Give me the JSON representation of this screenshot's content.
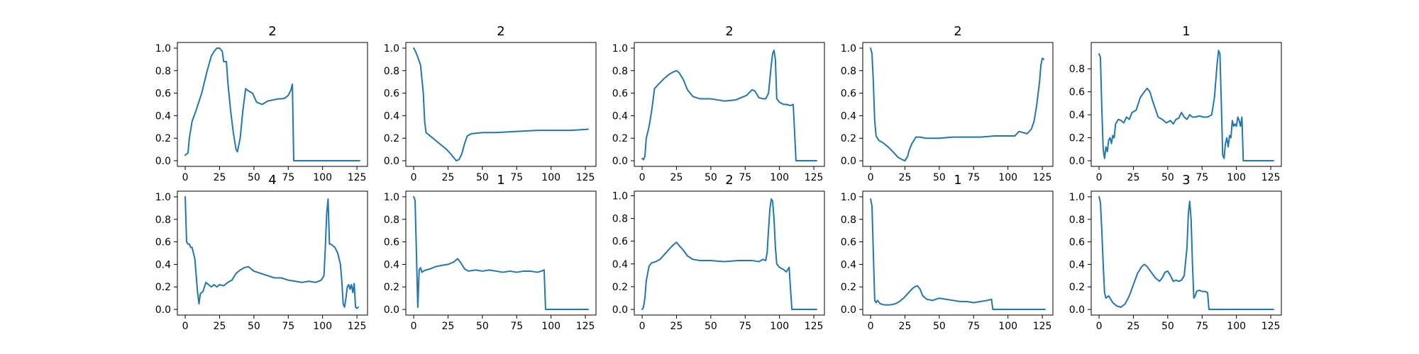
{
  "figure": {
    "background": "#ffffff",
    "line_color": "#1f77b4"
  },
  "chart_data": [
    {
      "type": "line",
      "title": "2",
      "xlim": [
        0,
        127
      ],
      "ylim": [
        0,
        1.0
      ],
      "xticks": [
        "0",
        "25",
        "50",
        "75",
        "100",
        "125"
      ],
      "yticks": [
        "0.0",
        "0.2",
        "0.4",
        "0.6",
        "0.8",
        "1.0"
      ],
      "x": [
        0,
        2,
        3,
        5,
        8,
        12,
        16,
        19,
        21,
        23,
        25,
        27,
        28,
        30,
        31,
        33,
        35,
        37,
        38,
        40,
        42,
        44,
        46,
        49,
        52,
        56,
        60,
        64,
        68,
        71,
        73,
        75,
        77,
        78,
        79,
        127
      ],
      "values": [
        0.05,
        0.07,
        0.2,
        0.35,
        0.45,
        0.6,
        0.8,
        0.93,
        0.97,
        1.0,
        1.0,
        0.97,
        0.88,
        0.88,
        0.7,
        0.45,
        0.25,
        0.1,
        0.08,
        0.2,
        0.45,
        0.64,
        0.62,
        0.6,
        0.52,
        0.5,
        0.53,
        0.54,
        0.55,
        0.55,
        0.56,
        0.58,
        0.63,
        0.68,
        0.0,
        0.0
      ]
    },
    {
      "type": "line",
      "title": "2",
      "xlim": [
        0,
        127
      ],
      "ylim": [
        0,
        1.0
      ],
      "xticks": [
        "0",
        "25",
        "50",
        "75",
        "100",
        "125"
      ],
      "yticks": [
        "0.0",
        "0.2",
        "0.4",
        "0.6",
        "0.8",
        "1.0"
      ],
      "x": [
        0,
        1,
        3,
        5,
        7,
        8,
        9,
        12,
        16,
        20,
        24,
        27,
        29,
        31,
        33,
        35,
        37,
        39,
        42,
        50,
        60,
        75,
        90,
        105,
        115,
        127
      ],
      "values": [
        1.0,
        0.98,
        0.92,
        0.85,
        0.6,
        0.35,
        0.25,
        0.22,
        0.18,
        0.14,
        0.1,
        0.06,
        0.03,
        0.0,
        0.01,
        0.06,
        0.15,
        0.22,
        0.24,
        0.25,
        0.25,
        0.26,
        0.27,
        0.27,
        0.27,
        0.28
      ]
    },
    {
      "type": "line",
      "title": "2",
      "xlim": [
        0,
        127
      ],
      "ylim": [
        0,
        1.0
      ],
      "xticks": [
        "0",
        "25",
        "50",
        "75",
        "100",
        "125"
      ],
      "yticks": [
        "0.0",
        "0.2",
        "0.4",
        "0.6",
        "0.8",
        "1.0"
      ],
      "x": [
        0,
        1,
        2,
        3,
        5,
        7,
        9,
        12,
        16,
        20,
        23,
        25,
        27,
        30,
        33,
        37,
        42,
        50,
        60,
        68,
        72,
        76,
        80,
        82,
        85,
        88,
        90,
        92,
        94,
        95,
        96,
        97,
        98,
        100,
        103,
        105,
        108,
        110,
        112,
        127
      ],
      "values": [
        0.02,
        0.01,
        0.04,
        0.2,
        0.3,
        0.45,
        0.64,
        0.68,
        0.73,
        0.77,
        0.79,
        0.8,
        0.78,
        0.72,
        0.63,
        0.57,
        0.55,
        0.55,
        0.53,
        0.54,
        0.56,
        0.58,
        0.63,
        0.62,
        0.56,
        0.55,
        0.55,
        0.6,
        0.85,
        0.95,
        0.98,
        0.9,
        0.55,
        0.52,
        0.5,
        0.5,
        0.49,
        0.5,
        0.0,
        0.0
      ]
    },
    {
      "type": "line",
      "title": "2",
      "xlim": [
        0,
        127
      ],
      "ylim": [
        0,
        1.0
      ],
      "xticks": [
        "0",
        "25",
        "50",
        "75",
        "100",
        "125"
      ],
      "yticks": [
        "0.0",
        "0.2",
        "0.4",
        "0.6",
        "0.8",
        "1.0"
      ],
      "x": [
        0,
        1,
        2,
        3,
        4,
        6,
        9,
        13,
        17,
        20,
        23,
        25,
        27,
        28,
        30,
        33,
        36,
        40,
        50,
        60,
        70,
        80,
        90,
        100,
        105,
        108,
        111,
        114,
        117,
        119,
        121,
        123,
        124,
        125,
        126
      ],
      "values": [
        1.0,
        0.95,
        0.7,
        0.35,
        0.22,
        0.18,
        0.16,
        0.12,
        0.07,
        0.03,
        0.01,
        0.0,
        0.04,
        0.09,
        0.15,
        0.21,
        0.21,
        0.2,
        0.2,
        0.21,
        0.21,
        0.21,
        0.22,
        0.22,
        0.22,
        0.26,
        0.25,
        0.24,
        0.28,
        0.35,
        0.5,
        0.7,
        0.85,
        0.91,
        0.9
      ]
    },
    {
      "type": "line",
      "title": "1",
      "xlim": [
        0,
        127
      ],
      "ylim": [
        0,
        0.98
      ],
      "xticks": [
        "0",
        "25",
        "50",
        "75",
        "100",
        "125"
      ],
      "yticks": [
        "0.0",
        "0.2",
        "0.4",
        "0.6",
        "0.8"
      ],
      "x": [
        0,
        1,
        2,
        3,
        4,
        5,
        6,
        7,
        8,
        9,
        10,
        11,
        12,
        14,
        16,
        18,
        20,
        22,
        24,
        27,
        30,
        33,
        35,
        37,
        39,
        41,
        43,
        46,
        49,
        52,
        54,
        56,
        58,
        60,
        62,
        64,
        66,
        68,
        70,
        73,
        76,
        79,
        82,
        84,
        86,
        87,
        88,
        89,
        90,
        91,
        92,
        93,
        94,
        95,
        96,
        97,
        98,
        99,
        100,
        101,
        102,
        103,
        104,
        105,
        127
      ],
      "values": [
        0.93,
        0.9,
        0.45,
        0.1,
        0.02,
        0.12,
        0.08,
        0.18,
        0.2,
        0.15,
        0.22,
        0.2,
        0.32,
        0.36,
        0.35,
        0.33,
        0.38,
        0.36,
        0.42,
        0.44,
        0.55,
        0.6,
        0.63,
        0.6,
        0.52,
        0.45,
        0.38,
        0.36,
        0.33,
        0.35,
        0.32,
        0.36,
        0.37,
        0.42,
        0.38,
        0.36,
        0.4,
        0.38,
        0.38,
        0.39,
        0.38,
        0.38,
        0.4,
        0.55,
        0.85,
        0.96,
        0.93,
        0.5,
        0.05,
        0.02,
        0.15,
        0.2,
        0.12,
        0.22,
        0.2,
        0.35,
        0.3,
        0.32,
        0.3,
        0.38,
        0.35,
        0.3,
        0.38,
        0.0,
        0.0
      ]
    },
    {
      "type": "line",
      "title": "4",
      "xlim": [
        0,
        127
      ],
      "ylim": [
        0,
        1.0
      ],
      "xticks": [
        "0",
        "25",
        "50",
        "75",
        "100",
        "125"
      ],
      "yticks": [
        "0.0",
        "0.2",
        "0.4",
        "0.6",
        "0.8",
        "1.0"
      ],
      "x": [
        0,
        1,
        2,
        3,
        4,
        5,
        6,
        7,
        8,
        9,
        10,
        11,
        12,
        13,
        15,
        17,
        19,
        21,
        23,
        25,
        28,
        31,
        34,
        37,
        40,
        43,
        46,
        50,
        55,
        60,
        65,
        70,
        75,
        80,
        85,
        90,
        95,
        99,
        101,
        102,
        103,
        104,
        105,
        106,
        107,
        109,
        111,
        113,
        114,
        115,
        116,
        117,
        118,
        119,
        120,
        121,
        122,
        123,
        124,
        125,
        126
      ],
      "values": [
        1.0,
        0.6,
        0.58,
        0.58,
        0.55,
        0.55,
        0.5,
        0.45,
        0.3,
        0.15,
        0.05,
        0.14,
        0.15,
        0.16,
        0.24,
        0.22,
        0.2,
        0.22,
        0.2,
        0.22,
        0.21,
        0.24,
        0.26,
        0.32,
        0.35,
        0.37,
        0.38,
        0.34,
        0.32,
        0.3,
        0.28,
        0.28,
        0.26,
        0.25,
        0.24,
        0.25,
        0.24,
        0.26,
        0.3,
        0.55,
        0.85,
        0.98,
        0.58,
        0.58,
        0.57,
        0.55,
        0.5,
        0.4,
        0.25,
        0.05,
        0.02,
        0.1,
        0.2,
        0.22,
        0.18,
        0.22,
        0.15,
        0.23,
        0.02,
        0.01,
        0.02
      ]
    },
    {
      "type": "line",
      "title": "1",
      "xlim": [
        0,
        127
      ],
      "ylim": [
        0,
        1.0
      ],
      "xticks": [
        "0",
        "25",
        "50",
        "75",
        "100",
        "125"
      ],
      "yticks": [
        "0.0",
        "0.2",
        "0.4",
        "0.6",
        "0.8",
        "1.0"
      ],
      "x": [
        0,
        1,
        2,
        3,
        4,
        5,
        6,
        7,
        9,
        12,
        16,
        20,
        25,
        29,
        32,
        34,
        37,
        40,
        45,
        50,
        55,
        60,
        65,
        70,
        75,
        80,
        85,
        90,
        93,
        95,
        96,
        127
      ],
      "values": [
        1.0,
        0.97,
        0.5,
        0.02,
        0.35,
        0.37,
        0.33,
        0.34,
        0.35,
        0.36,
        0.38,
        0.39,
        0.4,
        0.42,
        0.45,
        0.42,
        0.36,
        0.34,
        0.35,
        0.34,
        0.35,
        0.34,
        0.33,
        0.34,
        0.33,
        0.34,
        0.34,
        0.33,
        0.34,
        0.35,
        0.0,
        0.0
      ]
    },
    {
      "type": "line",
      "title": "2",
      "xlim": [
        0,
        127
      ],
      "ylim": [
        0,
        0.99
      ],
      "xticks": [
        "0",
        "25",
        "50",
        "75",
        "100",
        "125"
      ],
      "yticks": [
        "0.0",
        "0.2",
        "0.4",
        "0.6",
        "0.8",
        "1.0"
      ],
      "x": [
        0,
        1,
        2,
        3,
        5,
        7,
        10,
        13,
        16,
        19,
        22,
        24,
        25,
        27,
        30,
        33,
        37,
        42,
        50,
        60,
        70,
        80,
        85,
        88,
        90,
        91,
        92,
        93,
        94,
        95,
        96,
        97,
        98,
        100,
        103,
        105,
        107,
        109,
        127
      ],
      "values": [
        0.0,
        0.02,
        0.1,
        0.25,
        0.38,
        0.41,
        0.42,
        0.44,
        0.48,
        0.52,
        0.56,
        0.58,
        0.59,
        0.56,
        0.52,
        0.47,
        0.44,
        0.43,
        0.43,
        0.42,
        0.43,
        0.43,
        0.42,
        0.44,
        0.43,
        0.5,
        0.7,
        0.88,
        0.97,
        0.95,
        0.8,
        0.55,
        0.4,
        0.37,
        0.35,
        0.33,
        0.37,
        0.0,
        0.0
      ]
    },
    {
      "type": "line",
      "title": "1",
      "xlim": [
        0,
        127
      ],
      "ylim": [
        0,
        1.0
      ],
      "xticks": [
        "0",
        "25",
        "50",
        "75",
        "100",
        "125"
      ],
      "yticks": [
        "0.0",
        "0.2",
        "0.4",
        "0.6",
        "0.8",
        "1.0"
      ],
      "x": [
        0,
        1,
        2,
        3,
        4,
        5,
        7,
        10,
        14,
        18,
        21,
        24,
        27,
        30,
        32,
        34,
        36,
        38,
        41,
        45,
        50,
        55,
        60,
        65,
        70,
        75,
        80,
        85,
        88,
        89,
        127
      ],
      "values": [
        0.98,
        0.92,
        0.5,
        0.08,
        0.06,
        0.08,
        0.05,
        0.04,
        0.04,
        0.05,
        0.07,
        0.1,
        0.14,
        0.18,
        0.2,
        0.21,
        0.18,
        0.12,
        0.09,
        0.08,
        0.1,
        0.09,
        0.08,
        0.07,
        0.07,
        0.06,
        0.07,
        0.08,
        0.09,
        0.0,
        0.0
      ]
    },
    {
      "type": "line",
      "title": "3",
      "xlim": [
        0,
        127
      ],
      "ylim": [
        0,
        1.0
      ],
      "xticks": [
        "0",
        "25",
        "50",
        "75",
        "100",
        "125"
      ],
      "yticks": [
        "0.0",
        "0.2",
        "0.4",
        "0.6",
        "0.8",
        "1.0"
      ],
      "x": [
        0,
        1,
        2,
        3,
        4,
        5,
        7,
        10,
        13,
        16,
        19,
        22,
        25,
        28,
        31,
        33,
        35,
        38,
        41,
        44,
        46,
        48,
        50,
        52,
        54,
        56,
        58,
        60,
        62,
        64,
        65,
        66,
        67,
        68,
        69,
        70,
        71,
        73,
        75,
        77,
        79,
        80,
        127
      ],
      "values": [
        1.0,
        0.95,
        0.7,
        0.4,
        0.15,
        0.1,
        0.12,
        0.06,
        0.03,
        0.02,
        0.05,
        0.12,
        0.22,
        0.32,
        0.38,
        0.4,
        0.38,
        0.33,
        0.28,
        0.25,
        0.28,
        0.33,
        0.34,
        0.3,
        0.25,
        0.26,
        0.25,
        0.26,
        0.3,
        0.55,
        0.85,
        0.96,
        0.8,
        0.4,
        0.1,
        0.12,
        0.16,
        0.17,
        0.16,
        0.16,
        0.15,
        0.0,
        0.0
      ]
    }
  ]
}
